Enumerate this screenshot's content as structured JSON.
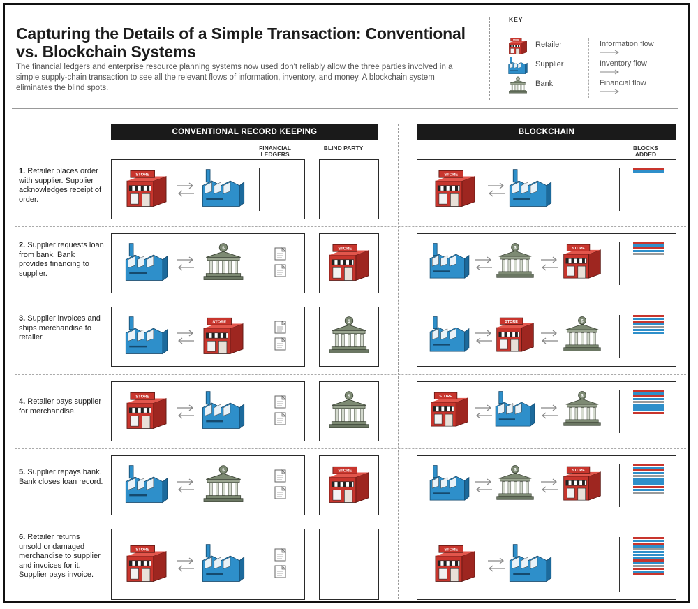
{
  "title": "Capturing the Details of a Simple Transaction: Conventional vs. Blockchain Systems",
  "subtitle": "The financial ledgers and enterprise resource planning systems now used don't reliably allow the three parties involved in a simple supply-chain transaction to see all the relevant flows of information, inventory, and money. A blockchain system eliminates the blind spots.",
  "key": {
    "title": "KEY",
    "parties": [
      {
        "label": "Retailer",
        "icon": "store-icon"
      },
      {
        "label": "Supplier",
        "icon": "factory-icon"
      },
      {
        "label": "Bank",
        "icon": "bank-icon"
      }
    ],
    "flows": [
      {
        "label": "Information flow",
        "style": "dashed"
      },
      {
        "label": "Inventory flow",
        "style": "solid"
      },
      {
        "label": "Financial flow",
        "style": "double"
      }
    ]
  },
  "columns": {
    "conventional": "CONVENTIONAL RECORD KEEPING",
    "blockchain": "BLOCKCHAIN",
    "financial_ledgers": "FINANCIAL LEDGERS",
    "blind_party": "BLIND PARTY",
    "blocks_added": "BLOCKS ADDED"
  },
  "store_sign": "STORE",
  "colors": {
    "retailer": "#c8352d",
    "supplier": "#2e8fca",
    "bank": "#7d8a73",
    "block_red": "#c8352d",
    "block_blue": "#2e8fca",
    "block_gray": "#9a9a9a"
  },
  "steps": [
    {
      "num": "1.",
      "text": "Retailer places order with supplier. Supplier acknowledges receipt of order.",
      "conv_parties": [
        "retailer",
        "supplier"
      ],
      "blind": null,
      "ledgers": 0,
      "bc_parties": [
        "retailer",
        "supplier"
      ],
      "blocks": [
        "red",
        "blue"
      ]
    },
    {
      "num": "2.",
      "text": "Supplier requests loan from bank. Bank provides financing to supplier.",
      "conv_parties": [
        "supplier",
        "bank"
      ],
      "blind": "retailer",
      "ledgers": 2,
      "bc_parties": [
        "supplier",
        "bank",
        "retailer"
      ],
      "blocks": [
        "red",
        "blue",
        "red",
        "blue",
        "gray"
      ]
    },
    {
      "num": "3.",
      "text": "Supplier invoices and ships merchandise to retailer.",
      "conv_parties": [
        "supplier",
        "retailer"
      ],
      "blind": "bank",
      "ledgers": 2,
      "bc_parties": [
        "supplier",
        "retailer",
        "bank"
      ],
      "blocks": [
        "red",
        "blue",
        "red",
        "blue",
        "gray",
        "blue",
        "blue"
      ]
    },
    {
      "num": "4.",
      "text": "Retailer pays supplier for merchandise.",
      "conv_parties": [
        "retailer",
        "supplier"
      ],
      "blind": "bank",
      "ledgers": 2,
      "bc_parties": [
        "retailer",
        "supplier",
        "bank"
      ],
      "blocks": [
        "red",
        "blue",
        "red",
        "blue",
        "gray",
        "blue",
        "blue",
        "blue",
        "red"
      ]
    },
    {
      "num": "5.",
      "text": "Supplier repays bank. Bank closes loan record.",
      "conv_parties": [
        "supplier",
        "bank"
      ],
      "blind": "retailer",
      "ledgers": 2,
      "bc_parties": [
        "supplier",
        "bank",
        "retailer"
      ],
      "blocks": [
        "red",
        "blue",
        "red",
        "blue",
        "gray",
        "blue",
        "blue",
        "blue",
        "red",
        "blue",
        "gray"
      ]
    },
    {
      "num": "6.",
      "text": "Retailer returns unsold or damaged merchandise to supplier and invoices for it. Supplier pays invoice.",
      "conv_parties": [
        "retailer",
        "supplier"
      ],
      "blind": null,
      "ledgers": 2,
      "bc_parties": [
        "retailer",
        "supplier"
      ],
      "blocks": [
        "red",
        "blue",
        "red",
        "blue",
        "gray",
        "blue",
        "blue",
        "blue",
        "red",
        "blue",
        "gray",
        "red",
        "blue",
        "red"
      ]
    }
  ]
}
